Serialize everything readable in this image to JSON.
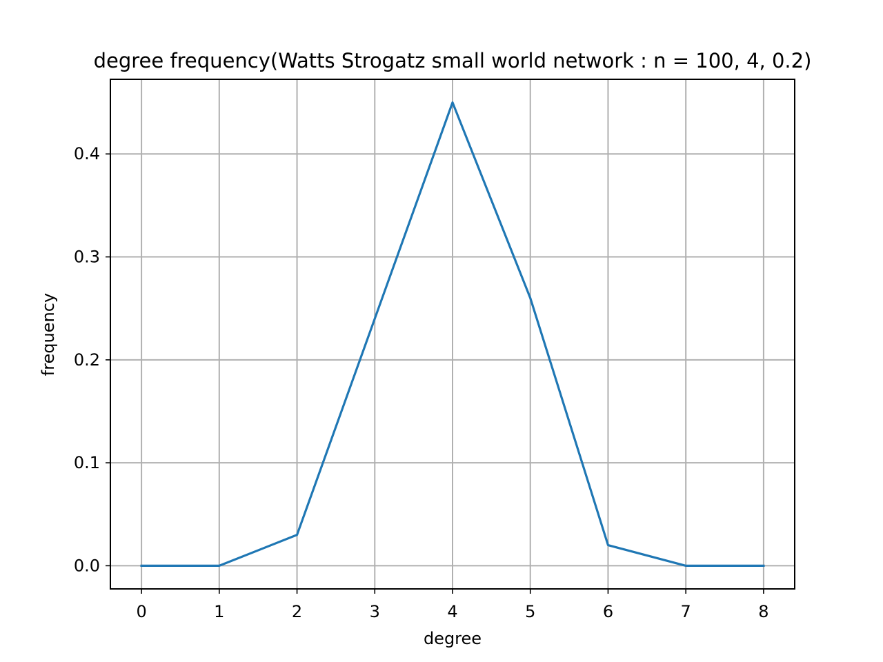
{
  "chart_data": {
    "type": "line",
    "title": "degree frequency(Watts Strogatz small world network : n = 100, 4,  0.2)",
    "xlabel": "degree",
    "ylabel": "frequency",
    "x": [
      0,
      1,
      2,
      3,
      4,
      5,
      6,
      7,
      8
    ],
    "series": [
      {
        "values": [
          0.0,
          0.0,
          0.03,
          0.24,
          0.45,
          0.26,
          0.02,
          0.0,
          0.0
        ]
      }
    ],
    "xlim": [
      -0.4,
      8.4
    ],
    "ylim": [
      -0.0225,
      0.4725
    ],
    "xticks": [
      "0",
      "1",
      "2",
      "3",
      "4",
      "5",
      "6",
      "7",
      "8"
    ],
    "yticks": [
      "0.0",
      "0.1",
      "0.2",
      "0.3",
      "0.4"
    ],
    "grid": true,
    "colors": {
      "line": "#1f77b4",
      "grid": "#b0b0b0"
    }
  }
}
